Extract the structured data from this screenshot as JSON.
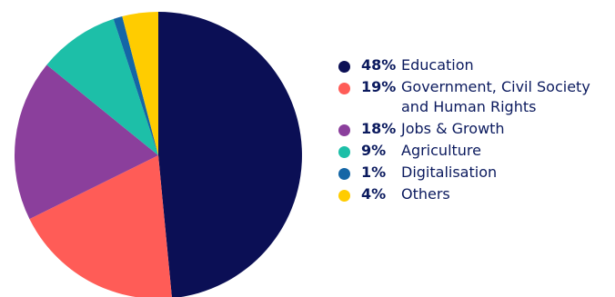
{
  "chart_data": {
    "type": "pie",
    "slices": [
      {
        "label": "Education",
        "percent_label": "48%",
        "value": 48,
        "color": "#0b0f55"
      },
      {
        "label": "Government, Civil Society\nand Human Rights",
        "percent_label": "19%",
        "value": 19,
        "color": "#ff5c57"
      },
      {
        "label": "Jobs & Growth",
        "percent_label": "18%",
        "value": 18,
        "color": "#8b3f9c"
      },
      {
        "label": "Agriculture",
        "percent_label": "9%",
        "value": 9,
        "color": "#1dbfa8"
      },
      {
        "label": "Digitalisation",
        "percent_label": "1%",
        "value": 1,
        "color": "#1466a6"
      },
      {
        "label": "Others",
        "percent_label": "4%",
        "value": 4,
        "color": "#ffcc00"
      }
    ],
    "legend_position": "right"
  }
}
